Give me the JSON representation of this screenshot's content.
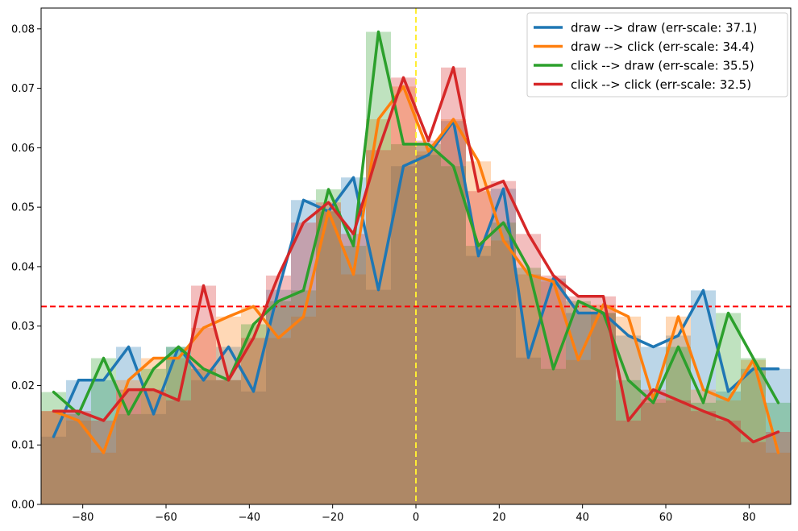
{
  "chart_data": {
    "type": "line",
    "title": "",
    "xlabel": "",
    "ylabel": "",
    "xlim": [
      -90,
      90
    ],
    "ylim": [
      0,
      0.0835
    ],
    "x_ticks": [
      -80,
      -60,
      -40,
      -20,
      0,
      20,
      40,
      60,
      80
    ],
    "x_tick_labels": [
      "−80",
      "−60",
      "−40",
      "−20",
      "0",
      "20",
      "40",
      "60",
      "80"
    ],
    "y_ticks": [
      0.0,
      0.01,
      0.02,
      0.03,
      0.04,
      0.05,
      0.06,
      0.07,
      0.08
    ],
    "y_tick_labels": [
      "0.00",
      "0.01",
      "0.02",
      "0.03",
      "0.04",
      "0.05",
      "0.06",
      "0.07",
      "0.08"
    ],
    "grid": false,
    "legend_position": "top-right",
    "reference_lines": [
      {
        "orientation": "vertical",
        "value": 0,
        "color": "#ffee33",
        "style": "dashed"
      },
      {
        "orientation": "horizontal",
        "value": 0.0333,
        "color": "#ff0000",
        "style": "dashed"
      }
    ],
    "x": [
      -87,
      -81,
      -75,
      -69,
      -63,
      -57,
      -51,
      -45,
      -39,
      -33,
      -27,
      -21,
      -15,
      -9,
      -3,
      3,
      9,
      15,
      21,
      27,
      33,
      39,
      45,
      51,
      57,
      63,
      69,
      75,
      81,
      87
    ],
    "series": [
      {
        "name": "draw --> draw (err-scale: 37.1)",
        "color": "#1f77b4",
        "values": [
          0.0114,
          0.0209,
          0.0209,
          0.0265,
          0.0152,
          0.0265,
          0.0209,
          0.0265,
          0.019,
          0.0361,
          0.0512,
          0.0493,
          0.055,
          0.0361,
          0.0569,
          0.0588,
          0.0645,
          0.0418,
          0.0531,
          0.0247,
          0.038,
          0.0322,
          0.0322,
          0.0284,
          0.0265,
          0.0284,
          0.036,
          0.019,
          0.0228,
          0.0228
        ]
      },
      {
        "name": "draw --> click (err-scale: 34.4)",
        "color": "#ff7f0e",
        "values": [
          0.0157,
          0.0141,
          0.0087,
          0.0209,
          0.0246,
          0.0246,
          0.0297,
          0.0316,
          0.0333,
          0.028,
          0.0316,
          0.0493,
          0.0387,
          0.0648,
          0.0703,
          0.0594,
          0.0648,
          0.0577,
          0.0444,
          0.0387,
          0.0375,
          0.0243,
          0.0336,
          0.0316,
          0.0177,
          0.0316,
          0.0193,
          0.0175,
          0.0243,
          0.0087
        ]
      },
      {
        "name": "click --> draw (err-scale: 35.5)",
        "color": "#2ca02c",
        "values": [
          0.0189,
          0.0152,
          0.0246,
          0.0152,
          0.0228,
          0.0265,
          0.0228,
          0.0209,
          0.0303,
          0.0342,
          0.036,
          0.053,
          0.0435,
          0.0795,
          0.0606,
          0.0606,
          0.0569,
          0.0435,
          0.0474,
          0.0398,
          0.0228,
          0.0342,
          0.0322,
          0.0209,
          0.0171,
          0.0265,
          0.0171,
          0.0322,
          0.0246,
          0.0171
        ]
      },
      {
        "name": "click --> click (err-scale: 32.5)",
        "color": "#d62728",
        "values": [
          0.0157,
          0.0157,
          0.0141,
          0.0193,
          0.0193,
          0.0175,
          0.0368,
          0.0209,
          0.028,
          0.0385,
          0.0474,
          0.0508,
          0.0455,
          0.0596,
          0.0718,
          0.0612,
          0.0735,
          0.0527,
          0.0544,
          0.0455,
          0.0385,
          0.035,
          0.035,
          0.0141,
          0.0193,
          0.0175,
          0.0157,
          0.0141,
          0.0105,
          0.0122
        ]
      }
    ]
  }
}
